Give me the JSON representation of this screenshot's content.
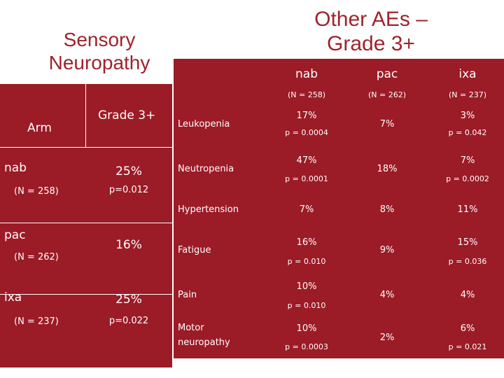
{
  "left_title": [
    "Sensory",
    "Neuropathy"
  ],
  "right_title": [
    "Other AEs –",
    "Grade 3+"
  ],
  "left_table": {
    "arm_header": "Arm",
    "grade_header": "Grade 3+",
    "rows": [
      {
        "arm": "nab",
        "n": "(N = 258)",
        "value": "25%",
        "p": "p=0.012"
      },
      {
        "arm": "pac",
        "n": "(N = 262)",
        "value": "16%",
        "p": ""
      },
      {
        "arm": "ixa",
        "n": "(N = 237)",
        "value": "25%",
        "p": "p=0.022"
      }
    ]
  },
  "right_table": {
    "columns": [
      {
        "name": "nab",
        "n": "(N = 258)"
      },
      {
        "name": "pac",
        "n": "(N = 262)"
      },
      {
        "name": "ixa",
        "n": "(N = 237)"
      }
    ],
    "rows": [
      {
        "label": "Leukopenia",
        "nab": "17%",
        "nab_p": "p = 0.0004",
        "pac": "7%",
        "ixa": "3%",
        "ixa_p": "p = 0.042"
      },
      {
        "label": "Neutropenia",
        "nab": "47%",
        "nab_p": "p = 0.0001",
        "pac": "18%",
        "ixa": "7%",
        "ixa_p": "p = 0.0002"
      },
      {
        "label": "Hypertension",
        "nab": "7%",
        "nab_p": "",
        "pac": "8%",
        "ixa": "11%",
        "ixa_p": ""
      },
      {
        "label": "Fatigue",
        "nab": "16%",
        "nab_p": "p = 0.010",
        "pac": "9%",
        "ixa": "15%",
        "ixa_p": "p = 0.036"
      },
      {
        "label": "Pain",
        "nab": "10%",
        "nab_p": "p = 0.010",
        "pac": "4%",
        "ixa": "4%",
        "ixa_p": ""
      },
      {
        "label": "Motor neuropathy",
        "nab": "10%",
        "nab_p": "p = 0.0003",
        "pac": "2%",
        "ixa": "6%",
        "ixa_p": "p = 0.021"
      }
    ]
  },
  "colors": {
    "table_bg": "#9b1b27",
    "title": "#a0222c",
    "text": "#ffffff"
  }
}
